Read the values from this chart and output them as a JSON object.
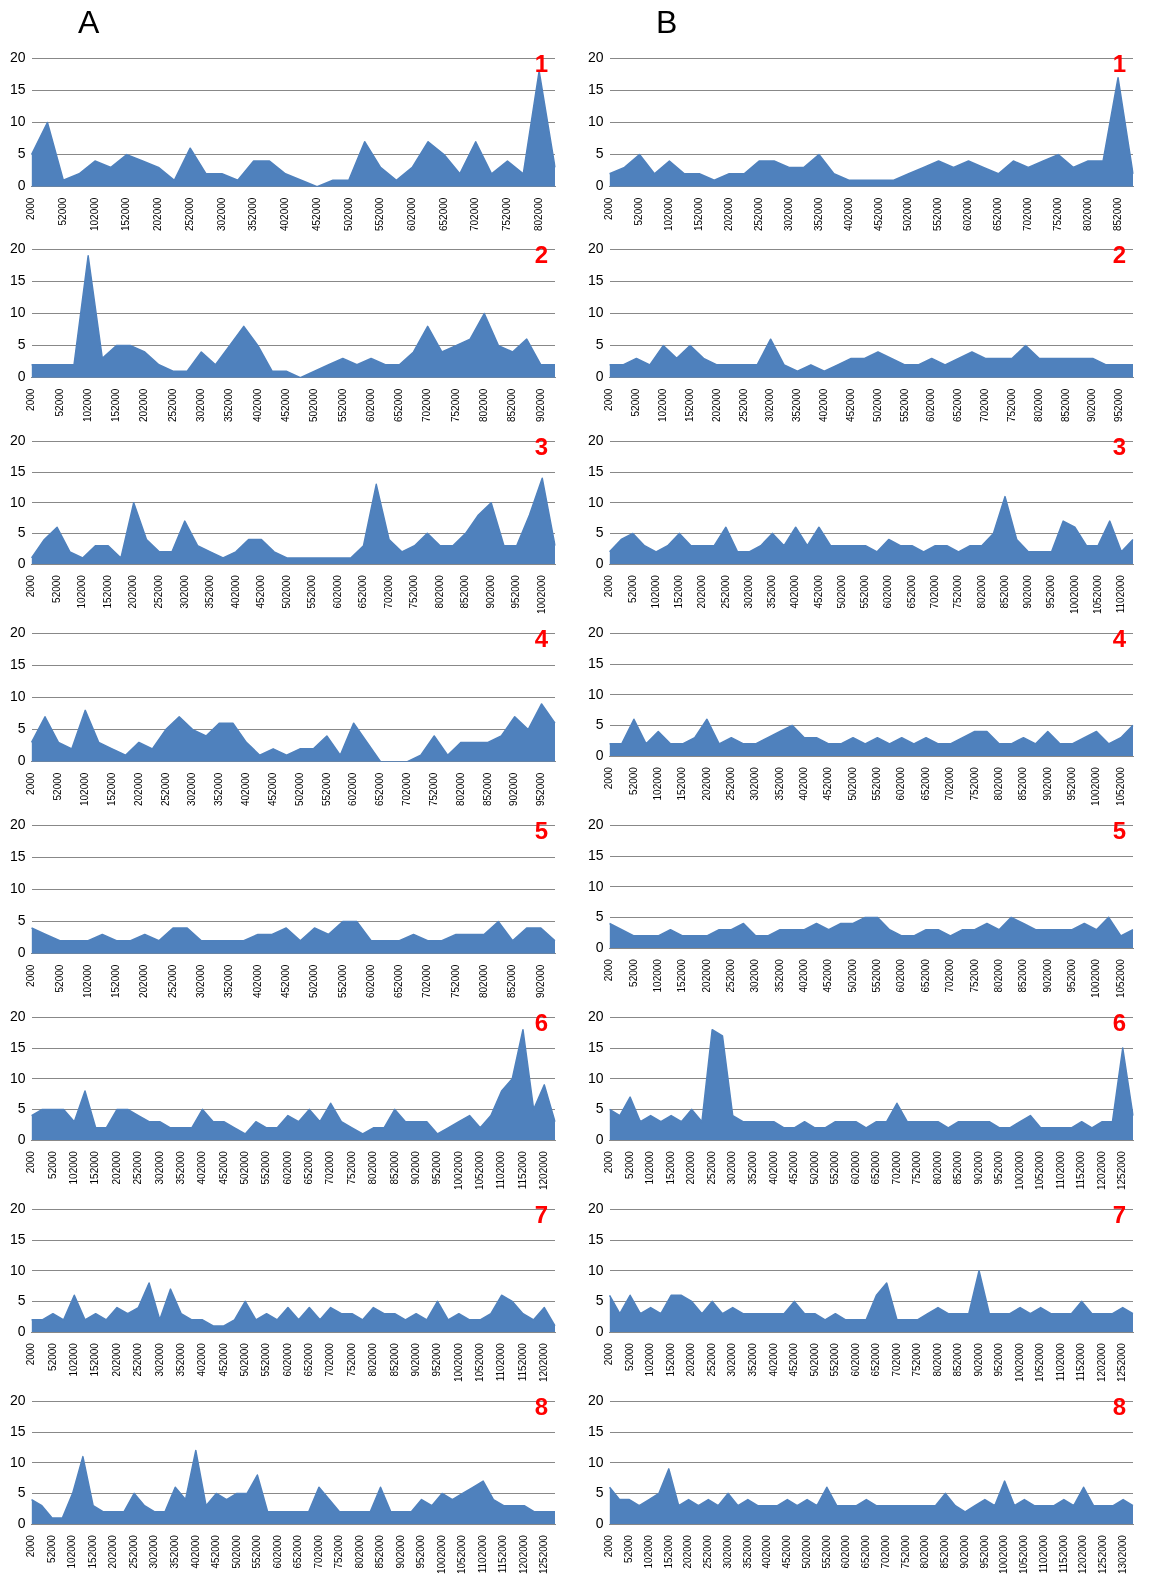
{
  "chart_data": [
    {
      "type": "area",
      "title": "A",
      "annotations": [
        "1"
      ],
      "color": "#4f81bd",
      "ylim": [
        0,
        20
      ],
      "yticks": [
        0,
        5,
        10,
        15,
        20
      ],
      "grid": "y",
      "categories": [
        "2000",
        null,
        "52000",
        null,
        "102000",
        null,
        "152000",
        null,
        "202000",
        null,
        "252000",
        null,
        "302000",
        null,
        "352000",
        null,
        "402000",
        null,
        "452000",
        null,
        "502000",
        null,
        "552000",
        null,
        "602000",
        null,
        "652000",
        null,
        "702000",
        null,
        "752000",
        null,
        "802000",
        null
      ],
      "values": [
        5,
        10,
        1,
        2,
        4,
        3,
        5,
        4,
        3,
        1,
        6,
        2,
        2,
        1,
        4,
        4,
        2,
        1,
        0,
        1,
        1,
        7,
        3,
        1,
        3,
        7,
        5,
        2,
        7,
        2,
        4,
        2,
        18,
        3
      ]
    },
    {
      "type": "area",
      "title": "B",
      "annotations": [
        "1"
      ],
      "color": "#4f81bd",
      "ylim": [
        0,
        20
      ],
      "yticks": [
        0,
        5,
        10,
        15,
        20
      ],
      "grid": "y",
      "categories": [
        "2000",
        null,
        "52000",
        null,
        "102000",
        null,
        "152000",
        null,
        "202000",
        null,
        "252000",
        null,
        "302000",
        null,
        "352000",
        null,
        "402000",
        null,
        "452000",
        null,
        "502000",
        null,
        "552000",
        null,
        "602000",
        null,
        "652000",
        null,
        "702000",
        null,
        "752000",
        null,
        "802000",
        null,
        "852000",
        null
      ],
      "values": [
        2,
        3,
        5,
        2,
        4,
        2,
        2,
        1,
        2,
        2,
        4,
        4,
        3,
        3,
        5,
        2,
        1,
        1,
        1,
        1,
        2,
        3,
        4,
        3,
        4,
        3,
        2,
        4,
        3,
        4,
        5,
        3,
        4,
        4,
        17,
        2
      ]
    },
    {
      "type": "area",
      "annotations": [
        "2"
      ],
      "color": "#4f81bd",
      "ylim": [
        0,
        20
      ],
      "yticks": [
        0,
        5,
        10,
        15,
        20
      ],
      "grid": "y",
      "categories": [
        "2000",
        null,
        "52000",
        null,
        "102000",
        null,
        "152000",
        null,
        "202000",
        null,
        "252000",
        null,
        "302000",
        null,
        "352000",
        null,
        "402000",
        null,
        "452000",
        null,
        "502000",
        null,
        "552000",
        null,
        "602000",
        null,
        "652000",
        null,
        "702000",
        null,
        "752000",
        null,
        "802000",
        null,
        "852000",
        null,
        "902000",
        null
      ],
      "values": [
        2,
        2,
        2,
        2,
        19,
        3,
        5,
        5,
        4,
        2,
        1,
        1,
        4,
        2,
        5,
        8,
        5,
        1,
        1,
        0,
        1,
        2,
        3,
        2,
        3,
        2,
        2,
        4,
        8,
        4,
        5,
        6,
        10,
        5,
        4,
        6,
        2,
        2
      ]
    },
    {
      "type": "area",
      "annotations": [
        "2"
      ],
      "color": "#4f81bd",
      "ylim": [
        0,
        20
      ],
      "yticks": [
        0,
        5,
        10,
        15,
        20
      ],
      "grid": "y",
      "categories": [
        "2000",
        null,
        "52000",
        null,
        "102000",
        null,
        "152000",
        null,
        "202000",
        null,
        "252000",
        null,
        "302000",
        null,
        "352000",
        null,
        "402000",
        null,
        "452000",
        null,
        "502000",
        null,
        "552000",
        null,
        "602000",
        null,
        "652000",
        null,
        "702000",
        null,
        "752000",
        null,
        "802000",
        null,
        "852000",
        null,
        "902000",
        null,
        "952000",
        null
      ],
      "values": [
        2,
        2,
        3,
        2,
        5,
        3,
        5,
        3,
        2,
        2,
        2,
        2,
        6,
        2,
        1,
        2,
        1,
        2,
        3,
        3,
        4,
        3,
        2,
        2,
        3,
        2,
        3,
        4,
        3,
        3,
        3,
        5,
        3,
        3,
        3,
        3,
        3,
        2,
        2,
        2
      ]
    },
    {
      "type": "area",
      "annotations": [
        "3"
      ],
      "color": "#4f81bd",
      "ylim": [
        0,
        20
      ],
      "yticks": [
        0,
        5,
        10,
        15,
        20
      ],
      "grid": "y",
      "categories": [
        "2000",
        null,
        "52000",
        null,
        "102000",
        null,
        "152000",
        null,
        "202000",
        null,
        "252000",
        null,
        "302000",
        null,
        "352000",
        null,
        "402000",
        null,
        "452000",
        null,
        "502000",
        null,
        "552000",
        null,
        "602000",
        null,
        "652000",
        null,
        "702000",
        null,
        "752000",
        null,
        "802000",
        null,
        "852000",
        null,
        "902000",
        null,
        "952000",
        null,
        "1002000",
        null
      ],
      "values": [
        1,
        4,
        6,
        2,
        1,
        3,
        3,
        1,
        10,
        4,
        2,
        2,
        7,
        3,
        2,
        1,
        2,
        4,
        4,
        2,
        1,
        1,
        1,
        1,
        1,
        1,
        3,
        13,
        4,
        2,
        3,
        5,
        3,
        3,
        5,
        8,
        10,
        3,
        3,
        8,
        14,
        3
      ]
    },
    {
      "type": "area",
      "annotations": [
        "3"
      ],
      "color": "#4f81bd",
      "ylim": [
        0,
        20
      ],
      "yticks": [
        0,
        5,
        10,
        15,
        20
      ],
      "grid": "y",
      "categories": [
        "2000",
        null,
        "52000",
        null,
        "102000",
        null,
        "152000",
        null,
        "202000",
        null,
        "252000",
        null,
        "302000",
        null,
        "352000",
        null,
        "402000",
        null,
        "452000",
        null,
        "502000",
        null,
        "552000",
        null,
        "602000",
        null,
        "652000",
        null,
        "702000",
        null,
        "752000",
        null,
        "802000",
        null,
        "852000",
        null,
        "902000",
        null,
        "952000",
        null,
        "1002000",
        null,
        "1052000",
        null,
        "1102000",
        null
      ],
      "values": [
        2,
        4,
        5,
        3,
        2,
        3,
        5,
        3,
        3,
        3,
        6,
        2,
        2,
        3,
        5,
        3,
        6,
        3,
        6,
        3,
        3,
        3,
        3,
        2,
        4,
        3,
        3,
        2,
        3,
        3,
        2,
        3,
        3,
        5,
        11,
        4,
        2,
        2,
        2,
        7,
        6,
        3,
        3,
        7,
        2,
        4
      ]
    },
    {
      "type": "area",
      "annotations": [
        "4"
      ],
      "color": "#4f81bd",
      "ylim": [
        0,
        20
      ],
      "yticks": [
        0,
        5,
        10,
        15,
        20
      ],
      "grid": "y",
      "categories": [
        "2000",
        null,
        "52000",
        null,
        "102000",
        null,
        "152000",
        null,
        "202000",
        null,
        "252000",
        null,
        "302000",
        null,
        "352000",
        null,
        "402000",
        null,
        "452000",
        null,
        "502000",
        null,
        "552000",
        null,
        "602000",
        null,
        "652000",
        null,
        "702000",
        null,
        "752000",
        null,
        "802000",
        null,
        "852000",
        null,
        "902000",
        null,
        "952000",
        null
      ],
      "values": [
        3,
        7,
        3,
        2,
        8,
        3,
        2,
        1,
        3,
        2,
        5,
        7,
        5,
        4,
        6,
        6,
        3,
        1,
        2,
        1,
        2,
        2,
        4,
        1,
        6,
        3,
        0,
        0,
        0,
        1,
        4,
        1,
        3,
        3,
        3,
        4,
        7,
        5,
        9,
        6
      ]
    },
    {
      "type": "area",
      "annotations": [
        "4"
      ],
      "color": "#4f81bd",
      "ylim": [
        0,
        20
      ],
      "yticks": [
        0,
        5,
        10,
        15,
        20
      ],
      "grid": "y",
      "categories": [
        "2000",
        null,
        "52000",
        null,
        "102000",
        null,
        "152000",
        null,
        "202000",
        null,
        "252000",
        null,
        "302000",
        null,
        "352000",
        null,
        "402000",
        null,
        "452000",
        null,
        "502000",
        null,
        "552000",
        null,
        "602000",
        null,
        "652000",
        null,
        "702000",
        null,
        "752000",
        null,
        "802000",
        null,
        "852000",
        null,
        "902000",
        null,
        "952000",
        null,
        "1002000",
        null,
        "1052000",
        null
      ],
      "values": [
        2,
        2,
        6,
        2,
        4,
        2,
        2,
        3,
        6,
        2,
        3,
        2,
        2,
        3,
        4,
        5,
        3,
        3,
        2,
        2,
        3,
        2,
        3,
        2,
        3,
        2,
        3,
        2,
        2,
        3,
        4,
        4,
        2,
        2,
        3,
        2,
        4,
        2,
        2,
        3,
        4,
        2,
        3,
        5
      ]
    },
    {
      "type": "area",
      "annotations": [
        "5"
      ],
      "color": "#4f81bd",
      "ylim": [
        0,
        20
      ],
      "yticks": [
        0,
        5,
        10,
        15,
        20
      ],
      "grid": "y",
      "categories": [
        "2000",
        null,
        "52000",
        null,
        "102000",
        null,
        "152000",
        null,
        "202000",
        null,
        "252000",
        null,
        "302000",
        null,
        "352000",
        null,
        "402000",
        null,
        "452000",
        null,
        "502000",
        null,
        "552000",
        null,
        "602000",
        null,
        "652000",
        null,
        "702000",
        null,
        "752000",
        null,
        "802000",
        null,
        "852000",
        null,
        "902000",
        null
      ],
      "values": [
        4,
        3,
        2,
        2,
        2,
        3,
        2,
        2,
        3,
        2,
        4,
        4,
        2,
        2,
        2,
        2,
        3,
        3,
        4,
        2,
        4,
        3,
        5,
        5,
        2,
        2,
        2,
        3,
        2,
        2,
        3,
        3,
        3,
        5,
        2,
        4,
        4,
        2
      ]
    },
    {
      "type": "area",
      "annotations": [
        "5"
      ],
      "color": "#4f81bd",
      "ylim": [
        0,
        20
      ],
      "yticks": [
        0,
        5,
        10,
        15,
        20
      ],
      "grid": "y",
      "categories": [
        "2000",
        null,
        "52000",
        null,
        "102000",
        null,
        "152000",
        null,
        "202000",
        null,
        "252000",
        null,
        "302000",
        null,
        "352000",
        null,
        "402000",
        null,
        "452000",
        null,
        "502000",
        null,
        "552000",
        null,
        "602000",
        null,
        "652000",
        null,
        "702000",
        null,
        "752000",
        null,
        "802000",
        null,
        "852000",
        null,
        "902000",
        null,
        "952000",
        null,
        "1002000",
        null,
        "1052000",
        null
      ],
      "values": [
        4,
        3,
        2,
        2,
        2,
        3,
        2,
        2,
        2,
        3,
        3,
        4,
        2,
        2,
        3,
        3,
        3,
        4,
        3,
        4,
        4,
        5,
        5,
        3,
        2,
        2,
        3,
        3,
        2,
        3,
        3,
        4,
        3,
        5,
        4,
        3,
        3,
        3,
        3,
        4,
        3,
        5,
        2,
        3
      ]
    },
    {
      "type": "area",
      "annotations": [
        "6"
      ],
      "color": "#4f81bd",
      "ylim": [
        0,
        20
      ],
      "yticks": [
        0,
        5,
        10,
        15,
        20
      ],
      "grid": "y",
      "categories": [
        "2000",
        null,
        "52000",
        null,
        "102000",
        null,
        "152000",
        null,
        "202000",
        null,
        "252000",
        null,
        "302000",
        null,
        "352000",
        null,
        "402000",
        null,
        "452000",
        null,
        "502000",
        null,
        "552000",
        null,
        "602000",
        null,
        "652000",
        null,
        "702000",
        null,
        "752000",
        null,
        "802000",
        null,
        "852000",
        null,
        "902000",
        null,
        "952000",
        null,
        "1002000",
        null,
        "1052000",
        null,
        "1102000",
        null,
        "1152000",
        null,
        "1202000",
        null
      ],
      "values": [
        4,
        5,
        5,
        5,
        3,
        8,
        2,
        2,
        5,
        5,
        4,
        3,
        3,
        2,
        2,
        2,
        5,
        3,
        3,
        2,
        1,
        3,
        2,
        2,
        4,
        3,
        5,
        3,
        6,
        3,
        2,
        1,
        2,
        2,
        5,
        3,
        3,
        3,
        1,
        2,
        3,
        4,
        2,
        4,
        8,
        10,
        18,
        5,
        9,
        3
      ]
    },
    {
      "type": "area",
      "annotations": [
        "6"
      ],
      "color": "#4f81bd",
      "ylim": [
        0,
        20
      ],
      "yticks": [
        0,
        5,
        10,
        15,
        20
      ],
      "grid": "y",
      "categories": [
        "2000",
        null,
        "52000",
        null,
        "102000",
        null,
        "152000",
        null,
        "202000",
        null,
        "252000",
        null,
        "302000",
        null,
        "352000",
        null,
        "402000",
        null,
        "452000",
        null,
        "502000",
        null,
        "552000",
        null,
        "602000",
        null,
        "652000",
        null,
        "702000",
        null,
        "752000",
        null,
        "802000",
        null,
        "852000",
        null,
        "902000",
        null,
        "952000",
        null,
        "1002000",
        null,
        "1052000",
        null,
        "1102000",
        null,
        "1152000",
        null,
        "1202000",
        null,
        "1252000",
        null
      ],
      "values": [
        5,
        4,
        7,
        3,
        4,
        3,
        4,
        3,
        5,
        3,
        18,
        17,
        4,
        3,
        3,
        3,
        3,
        2,
        2,
        3,
        2,
        2,
        3,
        3,
        3,
        2,
        3,
        3,
        6,
        3,
        3,
        3,
        3,
        2,
        3,
        3,
        3,
        3,
        2,
        2,
        3,
        4,
        2,
        2,
        2,
        2,
        3,
        2,
        3,
        3,
        15,
        4
      ]
    },
    {
      "type": "area",
      "annotations": [
        "7"
      ],
      "color": "#4f81bd",
      "ylim": [
        0,
        20
      ],
      "yticks": [
        0,
        5,
        10,
        15,
        20
      ],
      "grid": "y",
      "categories": [
        "2000",
        null,
        "52000",
        null,
        "102000",
        null,
        "152000",
        null,
        "202000",
        null,
        "252000",
        null,
        "302000",
        null,
        "352000",
        null,
        "402000",
        null,
        "452000",
        null,
        "502000",
        null,
        "552000",
        null,
        "602000",
        null,
        "652000",
        null,
        "702000",
        null,
        "752000",
        null,
        "802000",
        null,
        "852000",
        null,
        "902000",
        null,
        "952000",
        null,
        "1002000",
        null,
        "1052000",
        null,
        "1102000",
        null,
        "1152000",
        null,
        "1202000",
        null
      ],
      "values": [
        2,
        2,
        3,
        2,
        6,
        2,
        3,
        2,
        4,
        3,
        4,
        8,
        2,
        7,
        3,
        2,
        2,
        1,
        1,
        2,
        5,
        2,
        3,
        2,
        4,
        2,
        4,
        2,
        4,
        3,
        3,
        2,
        4,
        3,
        3,
        2,
        3,
        2,
        5,
        2,
        3,
        2,
        2,
        3,
        6,
        5,
        3,
        2,
        4,
        1
      ]
    },
    {
      "type": "area",
      "annotations": [
        "7"
      ],
      "color": "#4f81bd",
      "ylim": [
        0,
        20
      ],
      "yticks": [
        0,
        5,
        10,
        15,
        20
      ],
      "grid": "y",
      "categories": [
        "2000",
        null,
        "52000",
        null,
        "102000",
        null,
        "152000",
        null,
        "202000",
        null,
        "252000",
        null,
        "302000",
        null,
        "352000",
        null,
        "402000",
        null,
        "452000",
        null,
        "502000",
        null,
        "552000",
        null,
        "602000",
        null,
        "652000",
        null,
        "702000",
        null,
        "752000",
        null,
        "802000",
        null,
        "852000",
        null,
        "902000",
        null,
        "952000",
        null,
        "1002000",
        null,
        "1052000",
        null,
        "1102000",
        null,
        "1152000",
        null,
        "1202000",
        null,
        "1252000",
        null
      ],
      "values": [
        6,
        3,
        6,
        3,
        4,
        3,
        6,
        6,
        5,
        3,
        5,
        3,
        4,
        3,
        3,
        3,
        3,
        3,
        5,
        3,
        3,
        2,
        3,
        2,
        2,
        2,
        6,
        8,
        2,
        2,
        2,
        3,
        4,
        3,
        3,
        3,
        10,
        3,
        3,
        3,
        4,
        3,
        4,
        3,
        3,
        3,
        5,
        3,
        3,
        3,
        4,
        3
      ]
    },
    {
      "type": "area",
      "annotations": [
        "8"
      ],
      "color": "#4f81bd",
      "ylim": [
        0,
        20
      ],
      "yticks": [
        0,
        5,
        10,
        15,
        20
      ],
      "grid": "y",
      "categories": [
        "2000",
        null,
        "52000",
        null,
        "102000",
        null,
        "152000",
        null,
        "202000",
        null,
        "252000",
        null,
        "302000",
        null,
        "352000",
        null,
        "402000",
        null,
        "452000",
        null,
        "502000",
        null,
        "552000",
        null,
        "602000",
        null,
        "652000",
        null,
        "702000",
        null,
        "752000",
        null,
        "802000",
        null,
        "852000",
        null,
        "902000",
        null,
        "952000",
        null,
        "1002000",
        null,
        "1052000",
        null,
        "1102000",
        null,
        "1152000",
        null,
        "1202000",
        null,
        "1252000",
        null
      ],
      "values": [
        4,
        3,
        1,
        1,
        5,
        11,
        3,
        2,
        2,
        2,
        5,
        3,
        2,
        2,
        6,
        4,
        12,
        3,
        5,
        4,
        5,
        5,
        8,
        2,
        2,
        2,
        2,
        2,
        6,
        4,
        2,
        2,
        2,
        2,
        6,
        2,
        2,
        2,
        4,
        3,
        5,
        4,
        5,
        6,
        7,
        4,
        3,
        3,
        3,
        2,
        2,
        2
      ]
    },
    {
      "type": "area",
      "annotations": [
        "8"
      ],
      "color": "#4f81bd",
      "ylim": [
        0,
        20
      ],
      "yticks": [
        0,
        5,
        10,
        15,
        20
      ],
      "grid": "y",
      "categories": [
        "2000",
        null,
        "52000",
        null,
        "102000",
        null,
        "152000",
        null,
        "202000",
        null,
        "252000",
        null,
        "302000",
        null,
        "352000",
        null,
        "402000",
        null,
        "452000",
        null,
        "502000",
        null,
        "552000",
        null,
        "602000",
        null,
        "652000",
        null,
        "702000",
        null,
        "752000",
        null,
        "802000",
        null,
        "852000",
        null,
        "902000",
        null,
        "952000",
        null,
        "1002000",
        null,
        "1052000",
        null,
        "1102000",
        null,
        "1152000",
        null,
        "1202000",
        null,
        "1252000",
        null,
        "1302000",
        null
      ],
      "values": [
        6,
        4,
        4,
        3,
        4,
        5,
        9,
        3,
        4,
        3,
        4,
        3,
        5,
        3,
        4,
        3,
        3,
        3,
        4,
        3,
        4,
        3,
        6,
        3,
        3,
        3,
        4,
        3,
        3,
        3,
        3,
        3,
        3,
        3,
        5,
        3,
        2,
        3,
        4,
        3,
        7,
        3,
        4,
        3,
        3,
        3,
        4,
        3,
        6,
        3,
        3,
        3,
        4,
        3
      ]
    }
  ]
}
